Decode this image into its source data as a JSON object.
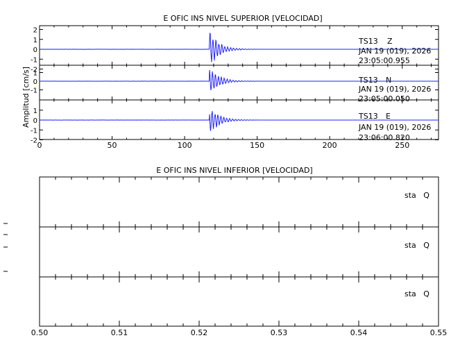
{
  "chart_data": [
    {
      "type": "line",
      "title": "E OFIC INS NIVEL SUPERIOR [VELOCIDAD]",
      "ylabel": "Amplitud [cm/s]",
      "xlim": [
        0,
        275
      ],
      "x_ticks": [
        0,
        50,
        100,
        150,
        200,
        250
      ],
      "line_color": "#1f1fff",
      "series": [
        {
          "station": "TS13",
          "component": "Z",
          "date": "JAN 19 (019), 2026",
          "time": "23:05:00.955",
          "ylim": [
            -2,
            2
          ],
          "y_ticks": [
            2,
            1,
            0,
            -1,
            -2
          ],
          "onset_x": 117,
          "peak_amplitude": 2.0,
          "decay_end_x": 150
        },
        {
          "station": "TS13",
          "component": "N",
          "date": "JAN 19 (019), 2026",
          "time": "23:05:00.050",
          "ylim": [
            -2,
            2
          ],
          "y_ticks": [
            1,
            0,
            -1
          ],
          "onset_x": 117,
          "peak_amplitude": 1.8,
          "decay_end_x": 150
        },
        {
          "station": "TS13",
          "component": "E",
          "date": "JAN 19 (019), 2026",
          "time": "23:06:00.820",
          "ylim": [
            -2,
            2
          ],
          "y_ticks": [
            1,
            0,
            -1,
            -2
          ],
          "onset_x": 117,
          "peak_amplitude": 1.6,
          "decay_end_x": 150
        }
      ]
    },
    {
      "type": "line",
      "title": "E OFIC INS NIVEL INFERIOR [VELOCIDAD]",
      "xlim": [
        0.5,
        0.55
      ],
      "x_tick_labels": [
        "0.50",
        "0.51",
        "0.52",
        "0.53",
        "0.54",
        "0.55"
      ],
      "panels": [
        {
          "label": "sta   Q"
        },
        {
          "label": "sta   Q"
        },
        {
          "label": "sta   Q"
        }
      ]
    }
  ]
}
